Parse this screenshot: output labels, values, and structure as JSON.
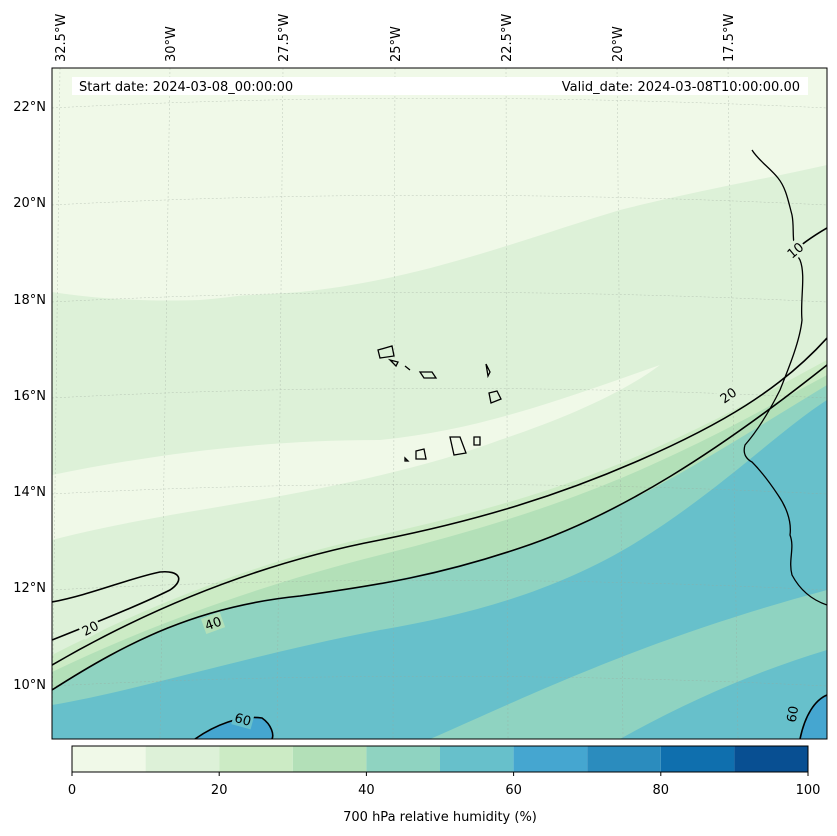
{
  "header": {
    "start_date": "Start date: 2024-03-08_00:00:00",
    "valid_date": "Valid_date: 2024-03-08T10:00:00.00"
  },
  "axes": {
    "lon_labels": [
      "32.5°W",
      "30°W",
      "27.5°W",
      "25°W",
      "22.5°W",
      "20°W",
      "17.5°W"
    ],
    "lat_labels": [
      "22°N",
      "20°N",
      "18°N",
      "16°N",
      "14°N",
      "12°N",
      "10°N"
    ]
  },
  "contours": {
    "labels": [
      "20",
      "40",
      "60",
      "20",
      "60",
      "10"
    ]
  },
  "colorbar": {
    "title": "700 hPa relative humidity (%)",
    "ticks": [
      "0",
      "20",
      "40",
      "60",
      "80",
      "100"
    ],
    "levels": [
      0,
      10,
      20,
      30,
      40,
      50,
      60,
      70,
      80,
      90,
      100
    ],
    "colors": [
      "#f0f9e8",
      "#ddf1d8",
      "#ccebc5",
      "#b3e0b8",
      "#8fd3c1",
      "#67c0cb",
      "#45a6d0",
      "#2b8cbe",
      "#0f6fae",
      "#084f92"
    ]
  }
}
